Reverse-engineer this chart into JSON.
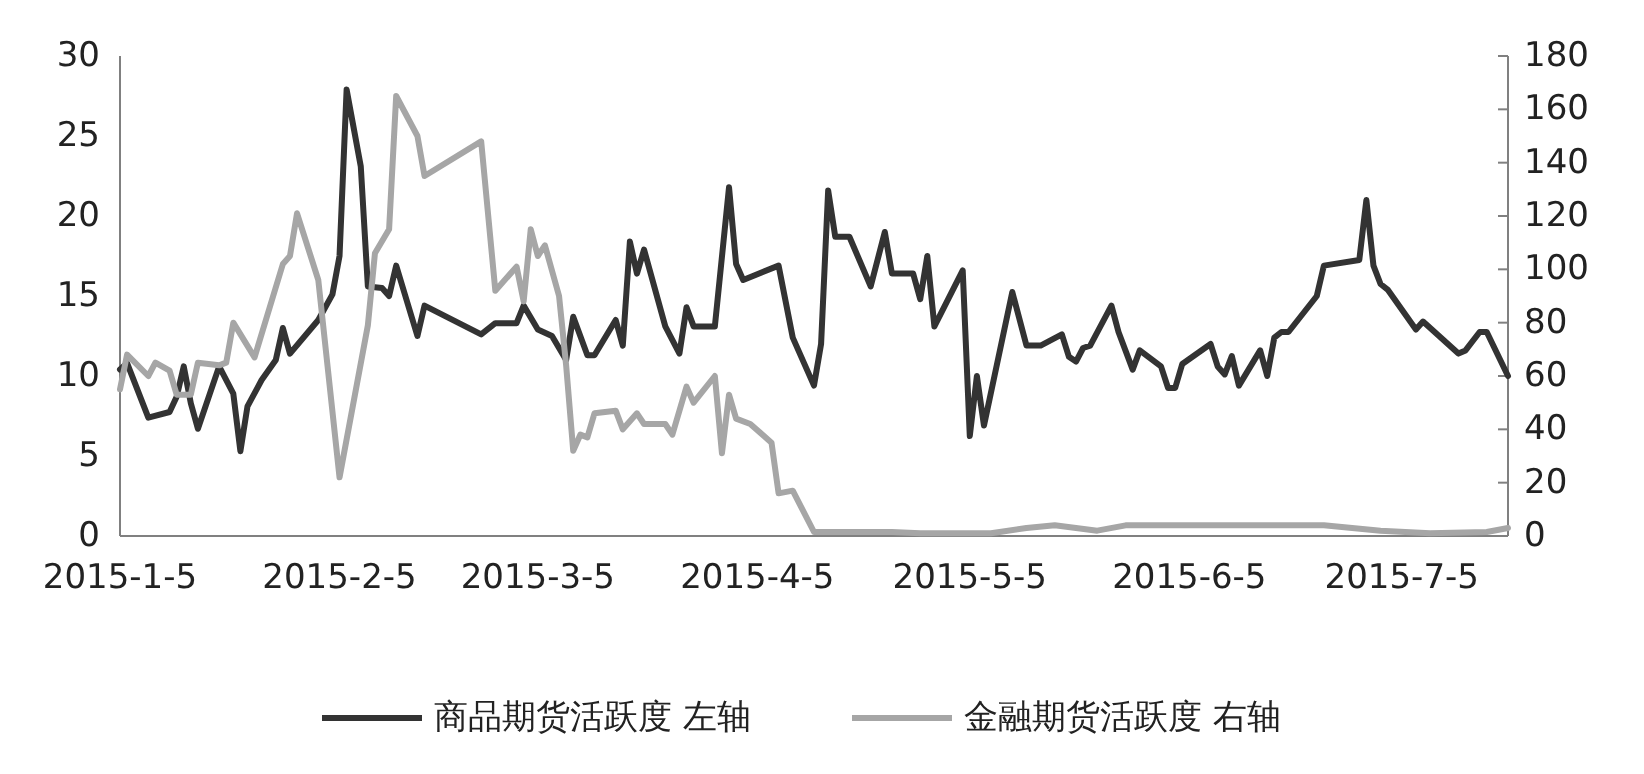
{
  "chart_data": {
    "type": "line",
    "xlim": [
      "2015-01-05",
      "2015-07-20"
    ],
    "xticks": [
      {
        "value": "2015-01-05",
        "label": "2015-1-5"
      },
      {
        "value": "2015-02-05",
        "label": "2015-2-5"
      },
      {
        "value": "2015-03-05",
        "label": "2015-3-5"
      },
      {
        "value": "2015-04-05",
        "label": "2015-4-5"
      },
      {
        "value": "2015-05-05",
        "label": "2015-5-5"
      },
      {
        "value": "2015-06-05",
        "label": "2015-6-5"
      },
      {
        "value": "2015-07-05",
        "label": "2015-7-5"
      }
    ],
    "ylim": [
      0,
      30
    ],
    "yticks": [
      0,
      5,
      10,
      15,
      20,
      25,
      30
    ],
    "y2lim": [
      0,
      180
    ],
    "y2ticks": [
      0,
      20,
      40,
      60,
      80,
      100,
      120,
      140,
      160,
      180
    ],
    "grid": false,
    "legend": "bottom",
    "marker": "none",
    "series": [
      {
        "name": "商品期货活跃度 左轴",
        "color": "#333333",
        "axis": "y",
        "x": [
          "2015-01-05",
          "2015-01-06",
          "2015-01-09",
          "2015-01-12",
          "2015-01-13",
          "2015-01-14",
          "2015-01-15",
          "2015-01-16",
          "2015-01-19",
          "2015-01-21",
          "2015-01-22",
          "2015-01-23",
          "2015-01-25",
          "2015-01-27",
          "2015-01-28",
          "2015-01-29",
          "2015-02-02",
          "2015-02-04",
          "2015-02-05",
          "2015-02-06",
          "2015-02-08",
          "2015-02-09",
          "2015-02-11",
          "2015-02-12",
          "2015-02-13",
          "2015-02-16",
          "2015-02-17",
          "2015-02-25",
          "2015-02-27",
          "2015-03-02",
          "2015-03-03",
          "2015-03-05",
          "2015-03-07",
          "2015-03-09",
          "2015-03-10",
          "2015-03-12",
          "2015-03-13",
          "2015-03-16",
          "2015-03-17",
          "2015-03-18",
          "2015-03-19",
          "2015-03-20",
          "2015-03-23",
          "2015-03-25",
          "2015-03-26",
          "2015-03-27",
          "2015-03-30",
          "2015-04-01",
          "2015-04-02",
          "2015-04-03",
          "2015-04-08",
          "2015-04-10",
          "2015-04-13",
          "2015-04-14",
          "2015-04-15",
          "2015-04-16",
          "2015-04-18",
          "2015-04-21",
          "2015-04-23",
          "2015-04-24",
          "2015-04-27",
          "2015-04-28",
          "2015-04-29",
          "2015-04-30",
          "2015-05-04",
          "2015-05-05",
          "2015-05-06",
          "2015-05-07",
          "2015-05-11",
          "2015-05-13",
          "2015-05-15",
          "2015-05-18",
          "2015-05-19",
          "2015-05-20",
          "2015-05-21",
          "2015-05-22",
          "2015-05-25",
          "2015-05-26",
          "2015-05-28",
          "2015-05-29",
          "2015-06-01",
          "2015-06-02",
          "2015-06-03",
          "2015-06-04",
          "2015-06-08",
          "2015-06-09",
          "2015-06-10",
          "2015-06-11",
          "2015-06-12",
          "2015-06-15",
          "2015-06-16",
          "2015-06-17",
          "2015-06-18",
          "2015-06-19",
          "2015-06-23",
          "2015-06-24",
          "2015-06-29",
          "2015-06-30",
          "2015-07-01",
          "2015-07-02",
          "2015-07-03",
          "2015-07-07",
          "2015-07-08",
          "2015-07-13",
          "2015-07-14",
          "2015-07-16",
          "2015-07-17",
          "2015-07-20"
        ],
        "values": [
          10.4,
          10.8,
          7.4,
          7.75,
          8.7,
          10.6,
          8.3,
          6.7,
          10.6,
          8.9,
          5.3,
          8.1,
          9.75,
          11,
          13,
          11.4,
          13.5,
          15.1,
          17.5,
          27.9,
          23.1,
          15.6,
          15.5,
          15,
          16.9,
          12.5,
          14.4,
          12.6,
          13.3,
          13.3,
          14.4,
          12.9,
          12.5,
          11,
          13.7,
          11.3,
          11.3,
          13.5,
          11.9,
          18.4,
          16.4,
          17.9,
          13.1,
          11.4,
          14.3,
          13.1,
          13.1,
          21.8,
          17,
          16,
          16.9,
          12.4,
          9.4,
          12,
          21.6,
          18.7,
          18.7,
          15.6,
          19,
          16.4,
          16.4,
          14.8,
          17.5,
          13.1,
          16.6,
          6.25,
          10,
          6.9,
          15.25,
          11.9,
          11.9,
          12.6,
          11.2,
          10.9,
          11.75,
          11.9,
          14.4,
          12.75,
          10.4,
          11.6,
          10.6,
          9.25,
          9.25,
          10.75,
          12,
          10.6,
          10.1,
          11.25,
          9.4,
          11.6,
          10,
          12.4,
          12.75,
          12.75,
          15,
          16.9,
          17.25,
          21,
          16.9,
          15.75,
          15.4,
          12.9,
          13.4,
          11.4,
          11.6,
          12.75,
          12.75,
          10
        ]
      },
      {
        "name": "金融期货活跃度 右轴",
        "color": "#a6a6a6",
        "axis": "y2",
        "x": [
          "2015-01-05",
          "2015-01-06",
          "2015-01-09",
          "2015-01-10",
          "2015-01-12",
          "2015-01-13",
          "2015-01-15",
          "2015-01-16",
          "2015-01-19",
          "2015-01-20",
          "2015-01-21",
          "2015-01-24",
          "2015-01-28",
          "2015-01-29",
          "2015-01-30",
          "2015-02-02",
          "2015-02-05",
          "2015-02-09",
          "2015-02-10",
          "2015-02-12",
          "2015-02-13",
          "2015-02-16",
          "2015-02-17",
          "2015-02-25",
          "2015-02-27",
          "2015-03-02",
          "2015-03-03",
          "2015-03-04",
          "2015-03-05",
          "2015-03-06",
          "2015-03-08",
          "2015-03-09",
          "2015-03-10",
          "2015-03-11",
          "2015-03-12",
          "2015-03-13",
          "2015-03-16",
          "2015-03-17",
          "2015-03-19",
          "2015-03-20",
          "2015-03-23",
          "2015-03-24",
          "2015-03-26",
          "2015-03-27",
          "2015-03-30",
          "2015-03-31",
          "2015-04-01",
          "2015-04-02",
          "2015-04-04",
          "2015-04-07",
          "2015-04-08",
          "2015-04-10",
          "2015-04-13",
          "2015-04-19",
          "2015-04-24",
          "2015-04-28",
          "2015-05-08",
          "2015-05-13",
          "2015-05-17",
          "2015-05-20",
          "2015-05-23",
          "2015-05-27",
          "2015-06-06",
          "2015-06-15",
          "2015-06-24",
          "2015-07-02",
          "2015-07-09",
          "2015-07-17",
          "2015-07-20"
        ],
        "values": [
          55,
          68,
          60,
          65,
          62,
          53,
          53,
          65,
          64,
          65,
          80,
          67,
          102,
          105,
          121,
          96,
          22,
          79,
          106,
          115,
          165,
          150,
          135,
          148,
          92,
          101,
          88,
          115,
          105,
          109,
          90,
          64,
          32,
          38,
          37,
          46,
          47,
          40,
          46,
          42,
          42,
          38,
          56,
          50,
          60,
          31,
          53,
          44,
          42,
          35,
          16,
          17,
          1.5,
          1.5,
          1.5,
          1,
          1,
          3,
          4,
          3,
          2,
          4,
          4,
          4,
          4,
          2,
          1,
          1.5,
          3
        ]
      }
    ]
  }
}
